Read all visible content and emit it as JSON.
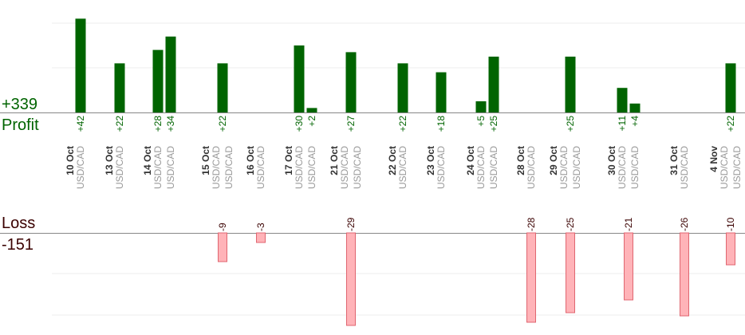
{
  "colors": {
    "profit_bar": "#006400",
    "profit_text": "#006400",
    "loss_fill": "#ffb3b8",
    "loss_stroke": "#e06670",
    "loss_text": "#3a0000",
    "date_text": "#333333",
    "pair_text": "#999999",
    "gridline": "#eeeeee",
    "baseline": "#888888"
  },
  "labels": {
    "profit_total": "+339",
    "profit_title": "Profit",
    "loss_title": "Loss",
    "loss_total": "-151"
  },
  "chart_data": {
    "type": "bar",
    "grid": true,
    "pair": "USD/CAD",
    "dates": [
      "10 Oct",
      "13 Oct",
      "14 Oct",
      "15 Oct",
      "16 Oct",
      "17 Oct",
      "21 Oct",
      "22 Oct",
      "23 Oct",
      "24 Oct",
      "28 Oct",
      "29 Oct",
      "30 Oct",
      "31 Oct",
      "4 Nov"
    ],
    "trades": [
      {
        "day": 0,
        "value": 42
      },
      {
        "day": 1,
        "value": 22
      },
      {
        "day": 2,
        "value": 28
      },
      {
        "day": 2,
        "value": 34
      },
      {
        "day": 3,
        "value": 22
      },
      {
        "day": 3,
        "value": -9
      },
      {
        "day": 4,
        "value": -3
      },
      {
        "day": 5,
        "value": 30
      },
      {
        "day": 5,
        "value": 2
      },
      {
        "day": 6,
        "value": -29
      },
      {
        "day": 6,
        "value": 27
      },
      {
        "day": 7,
        "value": 22
      },
      {
        "day": 8,
        "value": 18
      },
      {
        "day": 9,
        "value": 5
      },
      {
        "day": 9,
        "value": 25
      },
      {
        "day": 10,
        "value": -28
      },
      {
        "day": 11,
        "value": -25
      },
      {
        "day": 11,
        "value": 25
      },
      {
        "day": 12,
        "value": -21
      },
      {
        "day": 12,
        "value": 11
      },
      {
        "day": 12,
        "value": 4
      },
      {
        "day": 13,
        "value": -26
      },
      {
        "day": 14,
        "value": 22
      },
      {
        "day": 14,
        "value": -10
      }
    ]
  }
}
